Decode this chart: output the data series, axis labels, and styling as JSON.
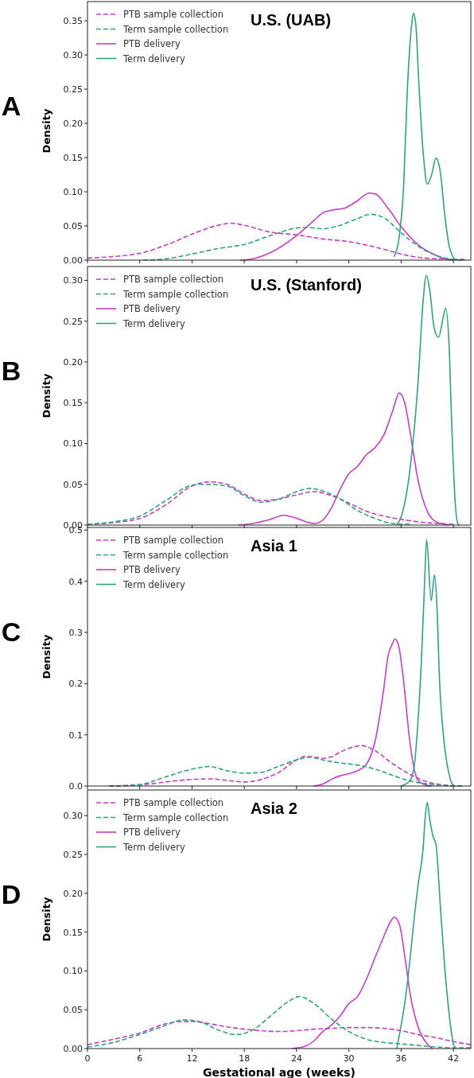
{
  "chart_data": [
    {
      "type": "line",
      "title": "U.S. (UAB)",
      "ylabel": "Density",
      "annotations": [
        "A"
      ],
      "legend": "top left",
      "tick_labels": "y",
      "xlim": [
        0,
        44
      ],
      "xticks": [
        0,
        6,
        12,
        18,
        24,
        30,
        36,
        42
      ],
      "ylim": [
        0,
        0.378
      ],
      "yticks": [
        {
          "value": 0,
          "label": "0.00"
        },
        {
          "value": 0.05,
          "label": "0.05"
        },
        {
          "value": 0.1,
          "label": "0.10"
        },
        {
          "value": 0.15,
          "label": "0.15"
        },
        {
          "value": 0.2,
          "label": "0.20"
        },
        {
          "value": 0.25,
          "label": "0.25"
        },
        {
          "value": 0.3,
          "label": "0.30"
        },
        {
          "value": 0.35,
          "label": "0.35"
        }
      ],
      "series": [
        {
          "name": "PTB sample collection",
          "color": "#c83cc8",
          "line_style": "dashed",
          "x": [
            0,
            6,
            9,
            12,
            15,
            16.5,
            18,
            21,
            24,
            27,
            30,
            32,
            34,
            36,
            38,
            40,
            42,
            43.3
          ],
          "values": [
            0.003,
            0.01,
            0.022,
            0.038,
            0.051,
            0.054,
            0.051,
            0.041,
            0.037,
            0.031,
            0.027,
            0.022,
            0.016,
            0.009,
            0.004,
            0.002,
            0.001,
            0.001
          ]
        },
        {
          "name": "Term sample collection",
          "color": "#2fa37f",
          "line_style": "dashed",
          "x": [
            6.4,
            9,
            12,
            15,
            18,
            21,
            24,
            25,
            27,
            29,
            31,
            32.5,
            34,
            36,
            38,
            40,
            42,
            43
          ],
          "values": [
            0,
            0.002,
            0.009,
            0.017,
            0.023,
            0.036,
            0.047,
            0.048,
            0.046,
            0.051,
            0.061,
            0.067,
            0.062,
            0.04,
            0.02,
            0.007,
            0.001,
            0
          ]
        },
        {
          "name": "PTB delivery",
          "color": "#c83cc8",
          "line_style": "solid",
          "x": [
            17.5,
            19,
            21,
            24,
            26,
            27,
            28,
            29.5,
            31,
            32.3,
            33,
            34.5,
            36,
            38,
            40,
            41,
            42
          ],
          "values": [
            0,
            0.002,
            0.011,
            0.036,
            0.058,
            0.069,
            0.073,
            0.076,
            0.087,
            0.098,
            0.097,
            0.076,
            0.049,
            0.022,
            0.007,
            0.002,
            0
          ]
        },
        {
          "name": "Term delivery",
          "color": "#2fa37f",
          "line_style": "solid",
          "x": [
            35.2,
            35.8,
            36.3,
            36.7,
            37.2,
            37.4,
            37.7,
            38,
            38.6,
            39,
            39.5,
            40,
            40.5,
            41,
            41.5,
            42,
            42.3
          ],
          "values": [
            0.005,
            0.036,
            0.111,
            0.245,
            0.343,
            0.361,
            0.343,
            0.267,
            0.147,
            0.111,
            0.125,
            0.149,
            0.129,
            0.067,
            0.022,
            0.004,
            0
          ]
        }
      ]
    },
    {
      "type": "line",
      "title": "U.S. (Stanford)",
      "ylabel": "Density",
      "annotations": [
        "B"
      ],
      "legend": "top left",
      "tick_labels": "y",
      "xlim": [
        0,
        44
      ],
      "xticks": [
        0,
        6,
        12,
        18,
        24,
        30,
        36,
        42
      ],
      "ylim": [
        0,
        0.317
      ],
      "yticks": [
        {
          "value": 0,
          "label": "0.00"
        },
        {
          "value": 0.05,
          "label": "0.05"
        },
        {
          "value": 0.1,
          "label": "0.10"
        },
        {
          "value": 0.15,
          "label": "0.15"
        },
        {
          "value": 0.2,
          "label": "0.20"
        },
        {
          "value": 0.25,
          "label": "0.25"
        },
        {
          "value": 0.3,
          "label": "0.30"
        }
      ],
      "series": [
        {
          "name": "PTB sample collection",
          "color": "#c83cc8",
          "line_style": "dashed",
          "x": [
            0,
            3,
            6,
            9,
            12,
            14,
            16,
            18,
            20,
            22,
            24,
            26,
            28,
            30,
            32,
            34,
            36,
            38,
            40,
            42
          ],
          "values": [
            0.001,
            0.003,
            0.008,
            0.025,
            0.048,
            0.053,
            0.05,
            0.038,
            0.03,
            0.032,
            0.037,
            0.041,
            0.036,
            0.027,
            0.017,
            0.011,
            0.007,
            0.004,
            0.002,
            0.001
          ]
        },
        {
          "name": "Term sample collection",
          "color": "#2fa37f",
          "line_style": "dashed",
          "x": [
            0,
            3,
            6,
            9,
            12,
            13.5,
            16,
            18,
            20,
            22,
            24,
            25.5,
            27,
            29,
            31,
            33,
            35,
            37
          ],
          "values": [
            0.001,
            0.004,
            0.011,
            0.03,
            0.049,
            0.05,
            0.048,
            0.036,
            0.028,
            0.032,
            0.041,
            0.045,
            0.042,
            0.032,
            0.018,
            0.008,
            0.002,
            0.001
          ]
        },
        {
          "name": "PTB delivery",
          "color": "#c83cc8",
          "line_style": "solid",
          "x": [
            17.3,
            19,
            21,
            22.5,
            23.5,
            26,
            27,
            28,
            29,
            30,
            31,
            32,
            33,
            34,
            35,
            35.8,
            36.5,
            37,
            38,
            39,
            40,
            41,
            41.5
          ],
          "values": [
            0,
            0.002,
            0.007,
            0.012,
            0.01,
            0.002,
            0.006,
            0.021,
            0.044,
            0.063,
            0.072,
            0.086,
            0.095,
            0.11,
            0.139,
            0.162,
            0.146,
            0.116,
            0.052,
            0.017,
            0.004,
            0.001,
            0
          ]
        },
        {
          "name": "Term delivery",
          "color": "#2fa37f",
          "line_style": "solid",
          "x": [
            35.5,
            36,
            37,
            38,
            38.5,
            38.9,
            39.3,
            39.8,
            40.3,
            40.8,
            41.1,
            41.5,
            41.8,
            42.2,
            42.5,
            42.7
          ],
          "values": [
            0,
            0.01,
            0.067,
            0.184,
            0.272,
            0.306,
            0.287,
            0.241,
            0.23,
            0.253,
            0.266,
            0.222,
            0.127,
            0.029,
            0.002,
            0
          ]
        }
      ]
    },
    {
      "type": "line",
      "title": "Asia 1",
      "ylabel": "Density",
      "annotations": [
        "C"
      ],
      "legend": "top left",
      "tick_labels": "y",
      "xlim": [
        0,
        44
      ],
      "xticks": [
        0,
        6,
        12,
        18,
        24,
        30,
        36,
        42
      ],
      "ylim": [
        0,
        0.505
      ],
      "yticks": [
        {
          "value": 0,
          "label": "0.0"
        },
        {
          "value": 0.1,
          "label": "0.1"
        },
        {
          "value": 0.2,
          "label": "0.2"
        },
        {
          "value": 0.3,
          "label": "0.3"
        },
        {
          "value": 0.4,
          "label": "0.4"
        },
        {
          "value": 0.5,
          "label": "0.5"
        }
      ],
      "series": [
        {
          "name": "PTB sample collection",
          "color": "#c83cc8",
          "line_style": "dashed",
          "x": [
            2.5,
            6,
            9,
            12,
            14,
            16,
            18,
            20,
            22,
            24,
            25,
            26,
            27,
            28,
            29,
            30.5,
            31.5,
            33,
            35,
            37,
            39,
            41,
            43
          ],
          "values": [
            0,
            0.002,
            0.008,
            0.013,
            0.014,
            0.011,
            0.008,
            0.013,
            0.027,
            0.051,
            0.058,
            0.057,
            0.054,
            0.057,
            0.066,
            0.076,
            0.079,
            0.069,
            0.044,
            0.023,
            0.008,
            0.002,
            0
          ]
        },
        {
          "name": "Term sample collection",
          "color": "#2fa37f",
          "line_style": "dashed",
          "x": [
            2.5,
            6,
            9,
            12,
            14,
            16,
            18,
            20,
            22,
            24,
            25.5,
            27,
            29,
            31,
            33,
            35,
            37,
            39,
            41,
            43
          ],
          "values": [
            0,
            0.003,
            0.018,
            0.033,
            0.038,
            0.03,
            0.025,
            0.027,
            0.039,
            0.051,
            0.056,
            0.051,
            0.045,
            0.041,
            0.033,
            0.021,
            0.01,
            0.004,
            0.001,
            0
          ]
        },
        {
          "name": "PTB delivery",
          "color": "#c83cc8",
          "line_style": "solid",
          "x": [
            26,
            27,
            28,
            29,
            30,
            31,
            32,
            33,
            34,
            34.5,
            35,
            35.3,
            35.7,
            36.2,
            37,
            37.5,
            38,
            39,
            39.5
          ],
          "values": [
            0,
            0.004,
            0.013,
            0.02,
            0.024,
            0.03,
            0.042,
            0.087,
            0.189,
            0.254,
            0.278,
            0.287,
            0.275,
            0.218,
            0.087,
            0.033,
            0.01,
            0.001,
            0
          ]
        },
        {
          "name": "Term delivery",
          "color": "#2fa37f",
          "line_style": "solid",
          "x": [
            36,
            37,
            37.5,
            37.9,
            38.3,
            38.6,
            38.8,
            38.93,
            39.45,
            39.83,
            40.1,
            40.41,
            40.93,
            41.45,
            41.87,
            42.2
          ],
          "values": [
            0,
            0.01,
            0.039,
            0.117,
            0.236,
            0.356,
            0.445,
            0.481,
            0.362,
            0.412,
            0.356,
            0.206,
            0.087,
            0.027,
            0.004,
            0
          ]
        }
      ]
    },
    {
      "type": "line",
      "title": "Asia 2",
      "xlabel": "Gestational age (weeks)",
      "ylabel": "Density",
      "annotations": [
        "D"
      ],
      "legend": "top left",
      "xlim": [
        0,
        44
      ],
      "xticks": [
        0,
        6,
        12,
        18,
        24,
        30,
        36,
        42
      ],
      "ylim": [
        0,
        0.333
      ],
      "yticks": [
        {
          "value": 0,
          "label": "0.00"
        },
        {
          "value": 0.05,
          "label": "0.05"
        },
        {
          "value": 0.1,
          "label": "0.10"
        },
        {
          "value": 0.15,
          "label": "0.15"
        },
        {
          "value": 0.2,
          "label": "0.20"
        },
        {
          "value": 0.25,
          "label": "0.25"
        },
        {
          "value": 0.3,
          "label": "0.30"
        }
      ],
      "series": [
        {
          "name": "PTB sample collection",
          "color": "#c83cc8",
          "line_style": "dashed",
          "x": [
            0,
            3,
            6,
            9,
            11,
            12,
            14,
            16,
            18,
            20,
            22,
            24,
            26,
            28,
            30,
            32,
            34,
            36,
            38,
            40,
            42,
            44
          ],
          "values": [
            0.005,
            0.012,
            0.02,
            0.032,
            0.035,
            0.035,
            0.032,
            0.028,
            0.025,
            0.023,
            0.022,
            0.023,
            0.025,
            0.026,
            0.027,
            0.027,
            0.026,
            0.023,
            0.018,
            0.014,
            0.009,
            0.005
          ]
        },
        {
          "name": "Term sample collection",
          "color": "#2fa37f",
          "line_style": "dashed",
          "x": [
            0,
            3,
            6,
            9,
            11,
            13,
            15,
            17,
            19,
            21,
            23,
            24.3,
            26,
            28,
            30,
            32,
            34,
            36,
            38,
            40,
            42,
            44
          ],
          "values": [
            0.002,
            0.008,
            0.018,
            0.03,
            0.037,
            0.034,
            0.024,
            0.018,
            0.024,
            0.042,
            0.06,
            0.067,
            0.058,
            0.038,
            0.022,
            0.012,
            0.008,
            0.006,
            0.004,
            0.002,
            0.001,
            0.001
          ]
        },
        {
          "name": "PTB delivery",
          "color": "#c83cc8",
          "line_style": "solid",
          "x": [
            23.5,
            25,
            26,
            27,
            28,
            29,
            30,
            31,
            32,
            33,
            34,
            34.8,
            35.2,
            35.8,
            36.5,
            37,
            38,
            39,
            39.6
          ],
          "values": [
            0,
            0.003,
            0.01,
            0.022,
            0.03,
            0.042,
            0.058,
            0.067,
            0.089,
            0.117,
            0.144,
            0.164,
            0.169,
            0.16,
            0.113,
            0.073,
            0.026,
            0.006,
            0
          ]
        },
        {
          "name": "Term delivery",
          "color": "#2fa37f",
          "line_style": "solid",
          "x": [
            35.5,
            36,
            36.5,
            37,
            37.5,
            38,
            38.5,
            38.8,
            39,
            39.3,
            39.7,
            40,
            40.5,
            41,
            41.5,
            42,
            42.3
          ],
          "values": [
            0,
            0.03,
            0.065,
            0.113,
            0.168,
            0.215,
            0.255,
            0.302,
            0.317,
            0.294,
            0.272,
            0.263,
            0.184,
            0.105,
            0.046,
            0.006,
            0
          ]
        }
      ]
    }
  ]
}
